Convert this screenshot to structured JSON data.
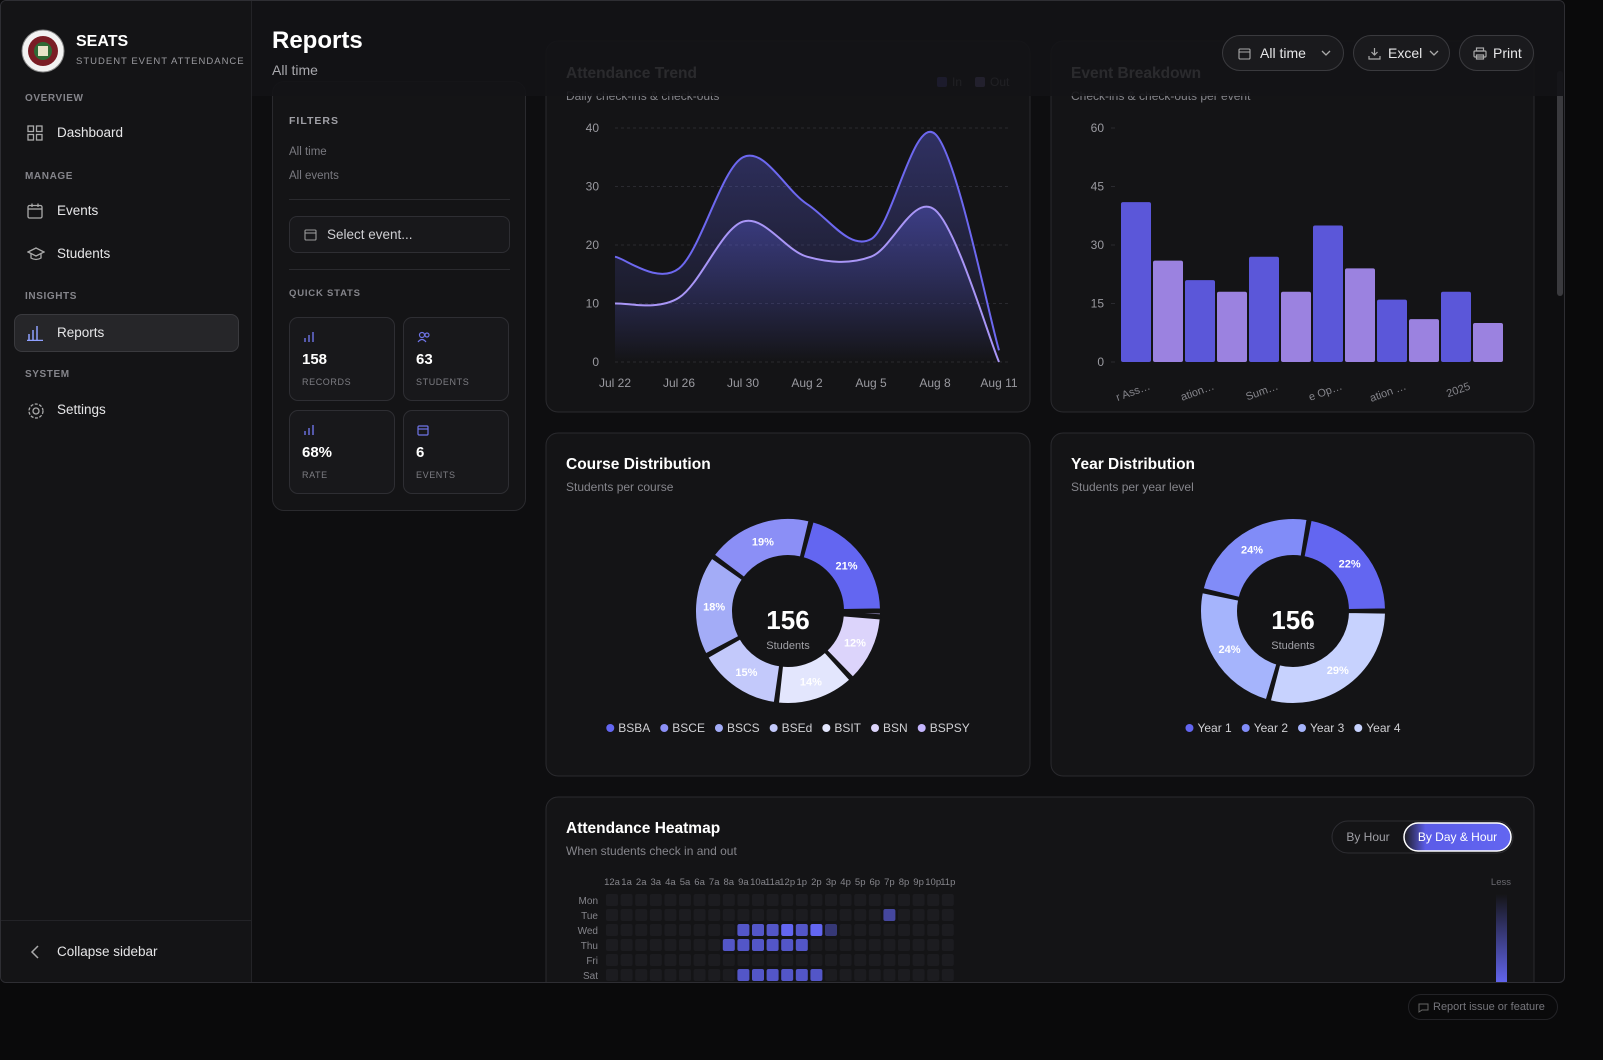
{
  "sidebar": {
    "brand": "SEATS",
    "tagline": "STUDENT EVENT ATTENDANCE",
    "sections": [
      {
        "label": "OVERVIEW",
        "items": [
          "Dashboard"
        ]
      },
      {
        "label": "MANAGE",
        "items": [
          "Events",
          "Students"
        ]
      },
      {
        "label": "INSIGHTS",
        "items": [
          "Reports"
        ]
      },
      {
        "label": "SYSTEM",
        "items": [
          "Settings"
        ]
      }
    ],
    "active_item": "Reports",
    "collapse": "Collapse sidebar"
  },
  "header": {
    "title": "Reports",
    "subtitle": "All time",
    "buttons": [
      "All time",
      "Excel",
      "Print"
    ]
  },
  "filters": {
    "title": "FILTERS",
    "period": "All time",
    "events": "All events",
    "select_placeholder": "Select event...",
    "quick_stats_title": "QUICK STATS",
    "stats": [
      {
        "value": 158,
        "label": "RECORDS"
      },
      {
        "value": 63,
        "label": "STUDENTS"
      },
      {
        "value": "68%",
        "label": "RATE"
      },
      {
        "value": 6,
        "label": "EVENTS"
      }
    ]
  },
  "report_link": "Report issue or feature",
  "charts": {
    "trend": {
      "type": "line",
      "title": "Attendance Trend",
      "subtitle": "Daily check-ins & check-outs",
      "categories": [
        "Jul 22",
        "Jul 26",
        "Jul 30",
        "Aug 2",
        "Aug 5",
        "Aug 8",
        "Aug 11"
      ],
      "series": [
        {
          "name": "In",
          "color": "#6d68f0",
          "values": [
            18,
            16,
            35,
            27,
            21,
            39,
            2
          ]
        },
        {
          "name": "Out",
          "color": "#a996f7",
          "values": [
            10,
            11,
            24,
            18,
            18,
            26,
            0
          ]
        }
      ],
      "ylim": [
        0,
        40
      ],
      "yticks": [
        0,
        10,
        20,
        30,
        40
      ],
      "grid": true
    },
    "bars": {
      "type": "bar",
      "title": "Event Breakdown",
      "subtitle": "Check-ins & check-outs per event",
      "categories": [
        "r Ass…",
        "ation…",
        "Sum…",
        "e Op…",
        "ation …",
        "2025"
      ],
      "series": [
        {
          "color": "#5b57d9",
          "values": [
            41,
            21,
            27,
            35,
            16,
            18
          ]
        },
        {
          "color": "#9b82e0",
          "values": [
            26,
            18,
            18,
            24,
            11,
            10
          ]
        }
      ],
      "ylim": [
        0,
        60
      ],
      "yticks": [
        0,
        15,
        30,
        45,
        60
      ]
    },
    "course": {
      "type": "donut",
      "title": "Course Distribution",
      "subtitle": "Students per course",
      "center_value": 156,
      "center_label": "Students",
      "categories": [
        "BSBA",
        "BSCE",
        "BSCS",
        "BSEd",
        "BSIT",
        "BSN",
        "BSPSY"
      ],
      "values": [
        21,
        19,
        18,
        15,
        14,
        12,
        1
      ],
      "value_labels": [
        "21%",
        "19%",
        "18%",
        "15%",
        "14%",
        "12%",
        null
      ],
      "colors": [
        "#6366f1",
        "#8b8ff6",
        "#a3acf7",
        "#c3c9fb",
        "#e3e6fd",
        "#dcd4fb",
        "#c4b5fd"
      ]
    },
    "year": {
      "type": "donut",
      "title": "Year Distribution",
      "subtitle": "Students per year level",
      "center_value": 156,
      "center_label": "Students",
      "categories": [
        "Year 1",
        "Year 2",
        "Year 3",
        "Year 4"
      ],
      "values": [
        22,
        24,
        24,
        29
      ],
      "value_labels": [
        "22%",
        "24%",
        "24%",
        "29%"
      ],
      "colors": [
        "#6366f1",
        "#818cf8",
        "#a5b4fc",
        "#c7d2fe"
      ]
    },
    "heatmap": {
      "type": "heatmap",
      "title": "Attendance Heatmap",
      "subtitle": "When students check in and out",
      "modes": [
        "By Hour",
        "By Day & Hour"
      ],
      "active_mode": "By Day & Hour",
      "legend_label": "Less",
      "color": "#6366f1",
      "x": [
        "12a",
        "1a",
        "2a",
        "3a",
        "4a",
        "5a",
        "6a",
        "7a",
        "8a",
        "9a",
        "10a",
        "11a",
        "12p",
        "1p",
        "2p",
        "3p",
        "4p",
        "5p",
        "6p",
        "7p",
        "8p",
        "9p",
        "10p",
        "11p"
      ],
      "y": [
        "Mon",
        "Tue",
        "Wed",
        "Thu",
        "Fri",
        "Sat"
      ],
      "values": [
        [
          0,
          0,
          0,
          0,
          0,
          0,
          0,
          0,
          0,
          0,
          0,
          0,
          0,
          0,
          0,
          0,
          0,
          0,
          0,
          0,
          0,
          0,
          0,
          0
        ],
        [
          0,
          0,
          0,
          0,
          0,
          0,
          0,
          0,
          0,
          0,
          0,
          0,
          0,
          0,
          0,
          0,
          0,
          0,
          0,
          2,
          0,
          0,
          0,
          0
        ],
        [
          0,
          0,
          0,
          0,
          0,
          0,
          0,
          0,
          0,
          3,
          3,
          3,
          4,
          3,
          4,
          1,
          0,
          0,
          0,
          0,
          0,
          0,
          0,
          0
        ],
        [
          0,
          0,
          0,
          0,
          0,
          0,
          0,
          0,
          3,
          3,
          3,
          3,
          3,
          3,
          0,
          0,
          0,
          0,
          0,
          0,
          0,
          0,
          0,
          0
        ],
        [
          0,
          0,
          0,
          0,
          0,
          0,
          0,
          0,
          0,
          0,
          0,
          0,
          0,
          0,
          0,
          0,
          0,
          0,
          0,
          0,
          0,
          0,
          0,
          0
        ],
        [
          0,
          0,
          0,
          0,
          0,
          0,
          0,
          0,
          0,
          3,
          3,
          3,
          3,
          3,
          3,
          0,
          0,
          0,
          0,
          0,
          0,
          0,
          0,
          0
        ]
      ]
    }
  }
}
